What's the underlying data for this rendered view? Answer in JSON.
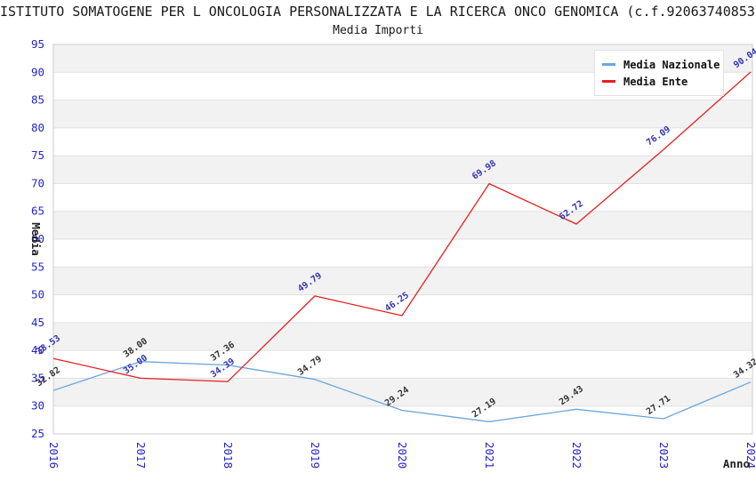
{
  "header": {
    "title": "ISTITUTO SOMATOGENE PER L ONCOLOGIA PERSONALIZZATA E LA RICERCA ONCO GENOMICA (c.f.92063740853)",
    "subtitle": "Media Importi"
  },
  "legend": {
    "items": [
      {
        "label": "Media Nazionale",
        "color": "#6CA6DC"
      },
      {
        "label": "Media Ente",
        "color": "#E62020"
      }
    ]
  },
  "axes": {
    "y_title": "Media",
    "x_title": "Anno"
  },
  "colors": {
    "tick_label": "#2424CC",
    "grid": "#E0E0E0",
    "band": "#F2F2F2",
    "frame": "#CCCCCC",
    "title_text": "#1A1A1A",
    "axis_title_text": "#222222"
  },
  "chart_data": {
    "type": "line",
    "title": "Media Importi",
    "categories": [
      2016,
      2017,
      2018,
      2019,
      2020,
      2021,
      2022,
      2023,
      2024
    ],
    "series": [
      {
        "name": "Media Nazionale",
        "color": "#6CA6DC",
        "label_color": "#333333",
        "values": [
          32.82,
          38.0,
          37.36,
          34.79,
          29.24,
          27.19,
          29.43,
          27.71,
          34.32
        ]
      },
      {
        "name": "Media Ente",
        "color": "#E62020",
        "label_color": "#3434B4",
        "values": [
          38.53,
          35.0,
          34.39,
          49.79,
          46.25,
          69.98,
          62.72,
          76.09,
          90.04
        ]
      }
    ],
    "xlabel": "Anno",
    "ylabel": "Media",
    "ylim": [
      25,
      95
    ],
    "ytick_step": 5,
    "grid": "horizontal-bands-alternating",
    "legend_position": "top-right",
    "value_label_decimals": 2,
    "value_label_rotation_deg": -35,
    "x_tick_rotation_deg": 90
  }
}
